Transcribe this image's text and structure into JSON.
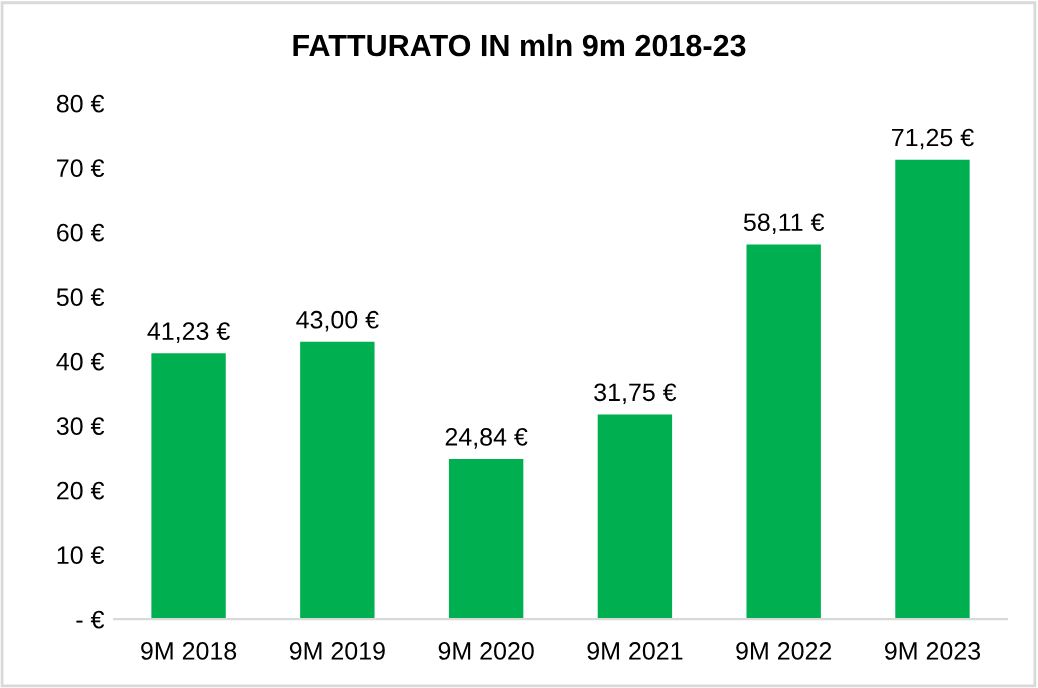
{
  "chart_data": {
    "type": "bar",
    "title": "FATTURATO IN mln 9m 2018-23",
    "categories": [
      "9M 2018",
      "9M 2019",
      "9M 2020",
      "9M 2021",
      "9M 2022",
      "9M 2023"
    ],
    "values": [
      41.23,
      43.0,
      24.84,
      31.75,
      58.11,
      71.25
    ],
    "value_labels": [
      "41,23 €",
      "43,00 €",
      "24,84 €",
      "31,75 €",
      "58,11 €",
      "71,25 €"
    ],
    "color": "#00b050",
    "ylim": [
      0,
      80
    ],
    "yticks": [
      {
        "value": 0,
        "label": "- €"
      },
      {
        "value": 10,
        "label": "10 €"
      },
      {
        "value": 20,
        "label": "20 €"
      },
      {
        "value": 30,
        "label": "30 €"
      },
      {
        "value": 40,
        "label": "40 €"
      },
      {
        "value": 50,
        "label": "50 €"
      },
      {
        "value": 60,
        "label": "60 €"
      },
      {
        "value": 70,
        "label": "70 €"
      },
      {
        "value": 80,
        "label": "80 €"
      }
    ],
    "grid": false
  }
}
